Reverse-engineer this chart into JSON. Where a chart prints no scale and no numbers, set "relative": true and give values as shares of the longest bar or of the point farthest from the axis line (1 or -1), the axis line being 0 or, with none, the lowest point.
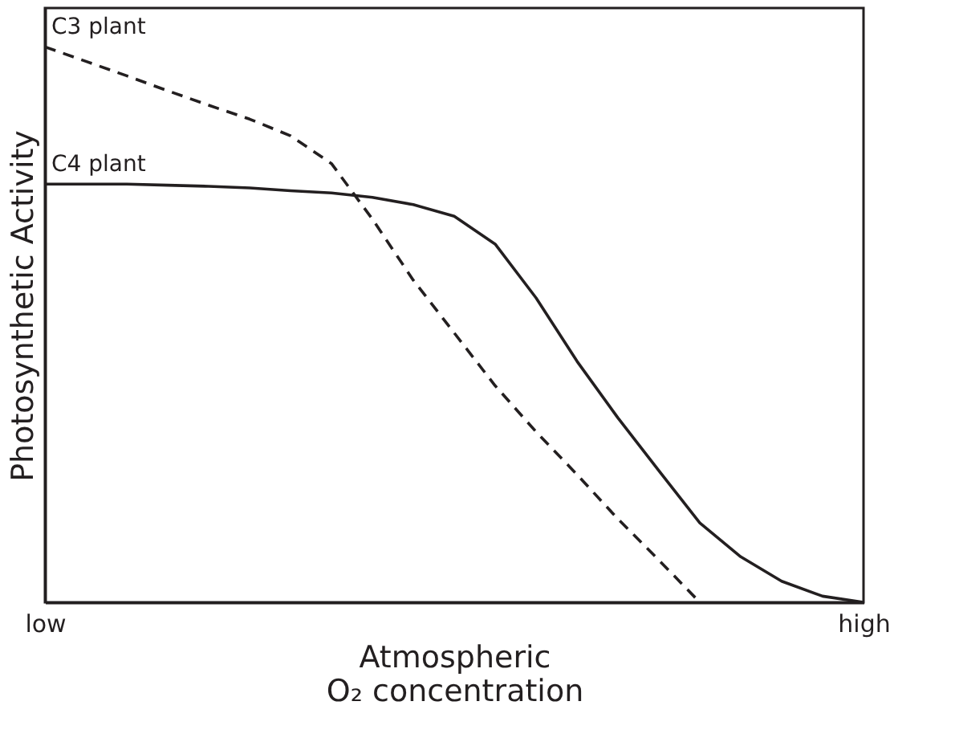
{
  "chart_data": {
    "type": "line",
    "relative": true,
    "xlabel": "Atmospheric\nO₂ concentration",
    "ylabel": "Photosynthetic Activity",
    "categories": [
      "low",
      null,
      null,
      null,
      null,
      null,
      null,
      null,
      null,
      null,
      null,
      null,
      null,
      null,
      null,
      null,
      null,
      null,
      null,
      null,
      "high"
    ],
    "grid": false,
    "legend": false,
    "marker": "none",
    "series": [
      {
        "name": "C3 plant",
        "color": "#231f20",
        "line_style": "dashed",
        "values": [
          1.0,
          0.974,
          0.948,
          0.921,
          0.895,
          0.87,
          0.84,
          0.79,
          0.69,
          0.58,
          0.485,
          0.39,
          0.307,
          0.23,
          0.15,
          0.076,
          0,
          null,
          null,
          null,
          null
        ]
      },
      {
        "name": "C4 plant",
        "color": "#231f20",
        "line_style": "solid",
        "values": [
          0.753,
          0.753,
          0.753,
          0.751,
          0.749,
          0.746,
          0.741,
          0.737,
          0.729,
          0.716,
          0.695,
          0.645,
          0.548,
          0.434,
          0.332,
          0.237,
          0.143,
          0.082,
          0.038,
          0.011,
          0
        ]
      }
    ]
  }
}
